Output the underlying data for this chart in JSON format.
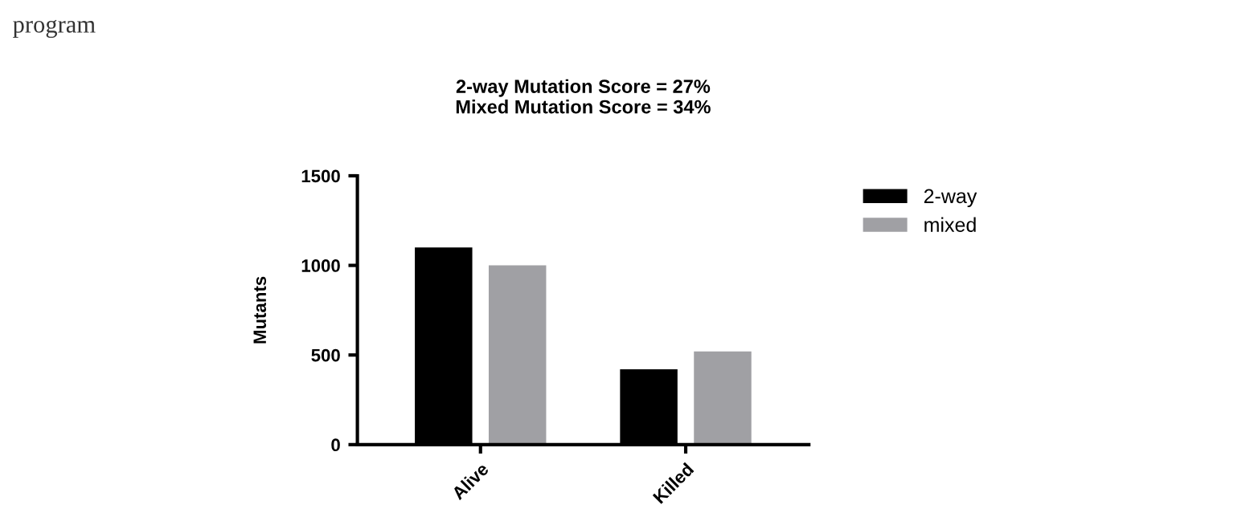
{
  "chart_data": {
    "type": "bar",
    "title": "2-way Mutation Score = 27%\nMixed Mutation Score = 34%",
    "ylabel": "Mutants",
    "categories": [
      "Alive",
      "Killed"
    ],
    "series": [
      {
        "name": "2-way",
        "color": "#000000",
        "values": [
          1100,
          420
        ]
      },
      {
        "name": "mixed",
        "color": "#a0a0a4",
        "values": [
          1000,
          520
        ]
      }
    ],
    "ylim": [
      0,
      1500
    ],
    "yticks": [
      0,
      500,
      1000,
      1500
    ],
    "grid": false,
    "legend": "right",
    "annotations": [
      "program"
    ]
  }
}
